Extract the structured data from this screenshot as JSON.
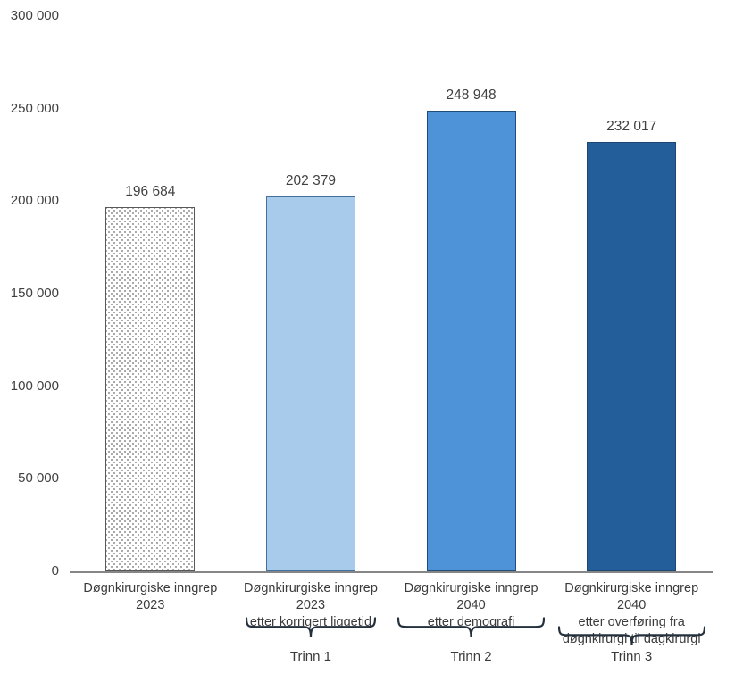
{
  "chart_data": {
    "type": "bar",
    "title": "",
    "xlabel": "",
    "ylabel": "",
    "ylim": [
      0,
      300000
    ],
    "grid": false,
    "legend": false,
    "y_ticks": [
      {
        "value": 0,
        "label": "0"
      },
      {
        "value": 50000,
        "label": "50 000"
      },
      {
        "value": 100000,
        "label": "100 000"
      },
      {
        "value": 150000,
        "label": "150 000"
      },
      {
        "value": 200000,
        "label": "200 000"
      },
      {
        "value": 250000,
        "label": "250 000"
      },
      {
        "value": 300000,
        "label": "300 000"
      }
    ],
    "categories": [
      [
        "Døgnkirurgiske inngrep 2023"
      ],
      [
        "Døgnkirurgiske inngrep 2023",
        "etter korrigert liggetid"
      ],
      [
        "Døgnkirurgiske inngrep 2040",
        "etter demografi"
      ],
      [
        "Døgnkirurgiske inngrep 2040",
        "etter overføring fra",
        "døgnkirurgi til dagkirurgi"
      ]
    ],
    "values": [
      196684,
      202379,
      248948,
      232017
    ],
    "value_labels": [
      "196 684",
      "202 379",
      "248 948",
      "232 017"
    ],
    "bar_styles": [
      {
        "fill": "pattern-dots",
        "border": "#595959"
      },
      {
        "fill": "#A8CBEB",
        "border": "#41719C"
      },
      {
        "fill": "#4E92D8",
        "border": "#1F4E79"
      },
      {
        "fill": "#235E9B",
        "border": "#1B4771"
      }
    ],
    "groups": [
      {
        "label": "Trinn 1",
        "column": 1
      },
      {
        "label": "Trinn 2",
        "column": 2
      },
      {
        "label": "Trinn 3",
        "column": 3
      }
    ]
  },
  "style": {
    "text_color": "#404040",
    "y_axis_color": "#595959",
    "x_axis_color": "#868686",
    "brace_color": "#24303E",
    "background": "#FFFFFF"
  }
}
